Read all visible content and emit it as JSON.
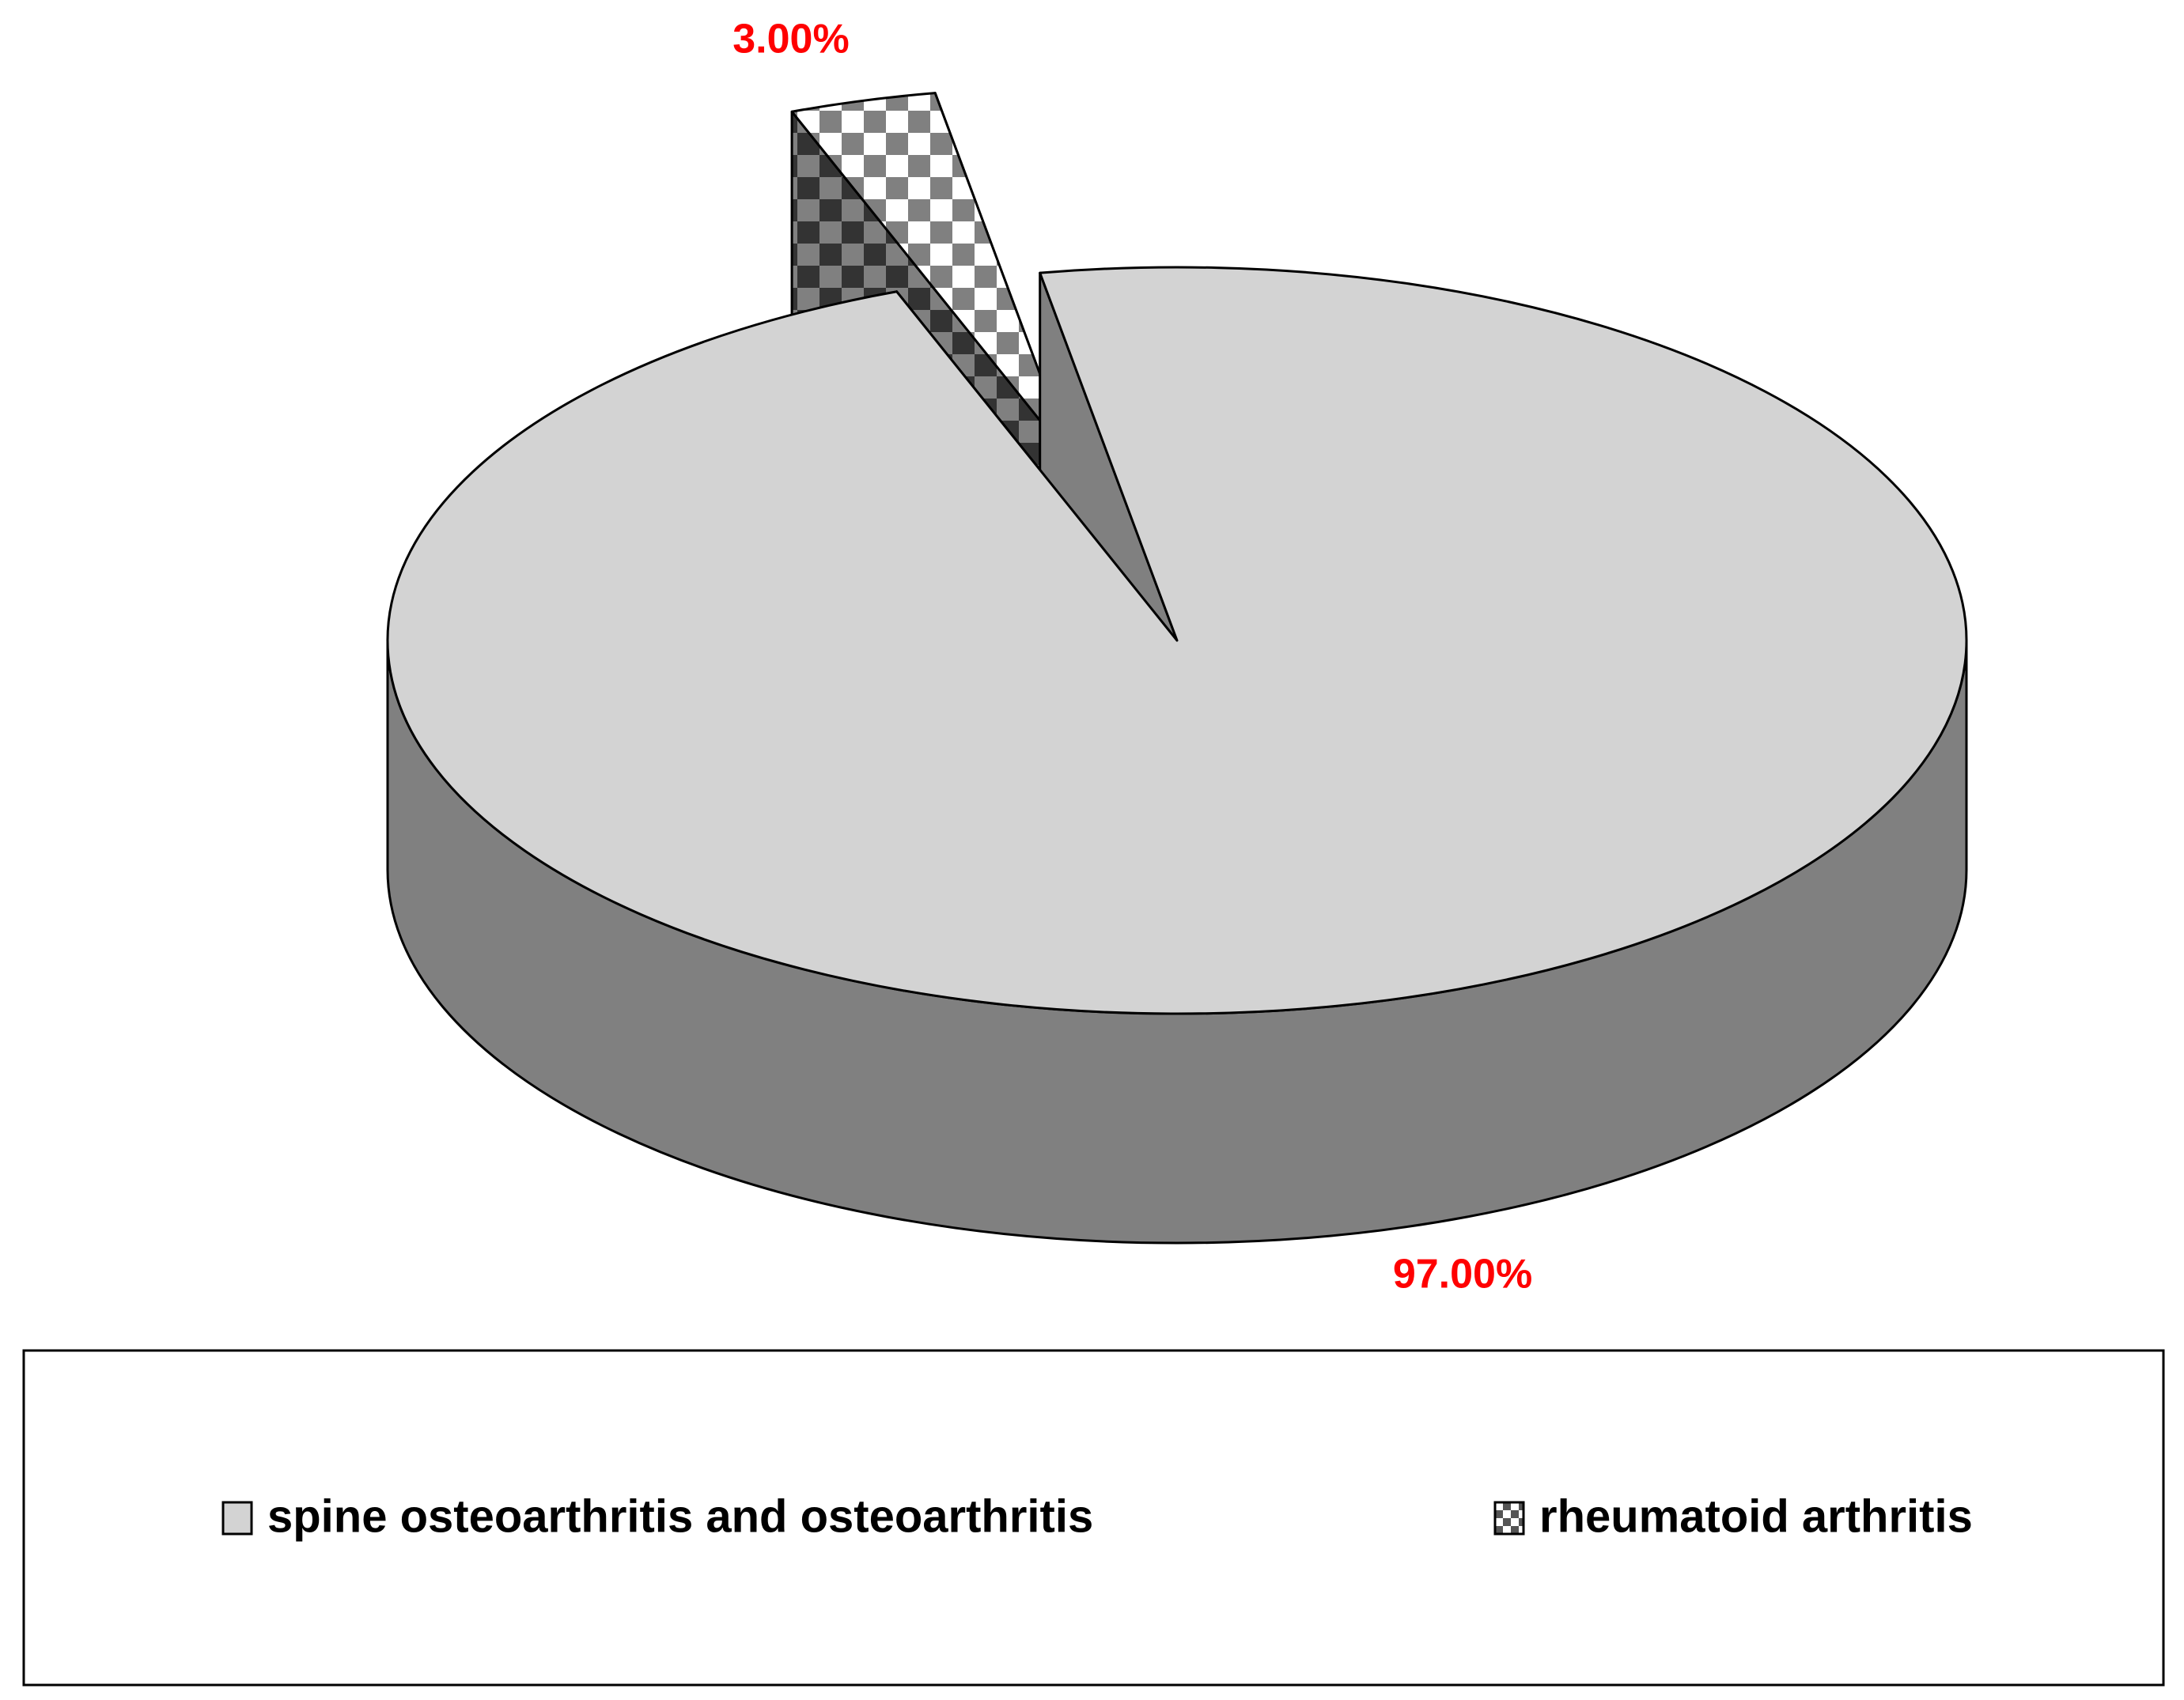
{
  "chart_data": {
    "type": "pie3d",
    "categories": [
      "spine osteoarthritis and osteoarthritis",
      "rheumatoid arthritis"
    ],
    "values": [
      97,
      3
    ],
    "value_labels": [
      "97.00%",
      "3.00%"
    ],
    "colors": [
      "#d3d3d3",
      "#808080"
    ],
    "patterns": [
      "solid",
      "checker"
    ],
    "legend": "bottom"
  }
}
